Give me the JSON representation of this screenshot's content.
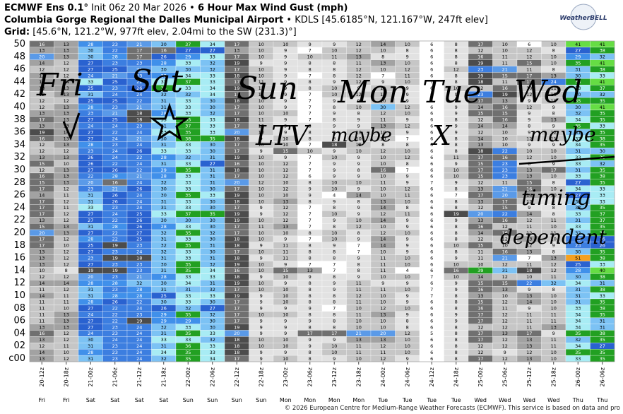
{
  "header": {
    "model": "ECMWF Ens 0.1°",
    "init": "Init 06z 20 Mar 2026",
    "product": "6 Hour Max Wind Gust (mph)",
    "station": "Columbia Gorge Regional the Dalles Municipal Airport",
    "station_info": "KDLS [45.6185°N, 121.167°W, 247ft elev]",
    "grid_label": "Grid:",
    "grid_info": "[45.6°N, 121.2°W, 977ft elev, 2.04mi to the SW (231.3)°]",
    "logo": "WeatherBELL"
  },
  "footer": "© 2026 European Centre for Medium-Range Weather Forecasts (ECMWF). This service is based on data and pro",
  "annotations": [
    "Fri",
    "Sat",
    "Sun",
    "Mon",
    "Tue",
    "Wed",
    "LTV",
    "maybe",
    "X",
    "maybe",
    "timing",
    "dependent"
  ],
  "chart_data": {
    "type": "heatmap",
    "x": [
      "20-12z",
      "20-18z",
      "21-00z",
      "21-06z",
      "21-12z",
      "21-18z",
      "22-00z",
      "22-06z",
      "22-12z",
      "22-18z",
      "23-00z",
      "23-06z",
      "23-12z",
      "23-18z",
      "24-00z",
      "24-06z",
      "24-12z",
      "24-18z",
      "25-00z",
      "25-06z",
      "25-12z",
      "25-18z",
      "26-00z",
      "26-06z"
    ],
    "days": [
      "Fri",
      "Fri",
      "Sat",
      "Sat",
      "Sat",
      "Sat",
      "Sun",
      "Sun",
      "Sun",
      "Sun",
      "Mon",
      "Mon",
      "Mon",
      "Mon",
      "Tue",
      "Tue",
      "Tue",
      "Tue",
      "Wed",
      "Wed",
      "Wed",
      "Wed",
      "Thu",
      "Thu"
    ],
    "members": [
      "50",
      null,
      "48",
      null,
      "46",
      null,
      "44",
      null,
      "42",
      null,
      "40",
      null,
      "38",
      null,
      "36",
      null,
      "34",
      null,
      "32",
      null,
      "30",
      null,
      "28",
      null,
      "26",
      null,
      "24",
      null,
      "22",
      null,
      "20",
      null,
      "18",
      null,
      "16",
      null,
      "14",
      null,
      "12",
      null,
      "10",
      null,
      "08",
      null,
      "06",
      null,
      "04",
      null,
      "02",
      null,
      "c00"
    ],
    "color_scale": [
      {
        "min": 0,
        "color": "#ffffff",
        "text": "#000000"
      },
      {
        "min": 8,
        "color": "#e2e2e2",
        "text": "#000000"
      },
      {
        "min": 10,
        "color": "#c6c6c6",
        "text": "#000000"
      },
      {
        "min": 13,
        "color": "#a2a2a2",
        "text": "#000000"
      },
      {
        "min": 15,
        "color": "#707070",
        "text": "#ffffff"
      },
      {
        "min": 18,
        "color": "#4c4c4c",
        "text": "#ffffff"
      },
      {
        "min": 20,
        "color": "#5a9ae8",
        "text": "#ffffff"
      },
      {
        "min": 22,
        "color": "#3c7ee0",
        "text": "#ffffff"
      },
      {
        "min": 25,
        "color": "#2a62d0",
        "text": "#ffffff"
      },
      {
        "min": 28,
        "color": "#4090ea",
        "text": "#ffffff"
      },
      {
        "min": 30,
        "color": "#7cc2f4",
        "text": "#000000"
      },
      {
        "min": 33,
        "color": "#a8ecf4",
        "text": "#000000"
      },
      {
        "min": 35,
        "color": "#22a022",
        "text": "#ffffff"
      },
      {
        "min": 40,
        "color": "#66dd44",
        "text": "#000000"
      },
      {
        "min": 50,
        "color": "#f4a020",
        "text": "#000000"
      }
    ],
    "values": [
      [
        16,
        13,
        28,
        23,
        21,
        30,
        37,
        34,
        17,
        10,
        10,
        9,
        9,
        12,
        14,
        10,
        6,
        8,
        17,
        10,
        6,
        10,
        41,
        41
      ],
      [
        13,
        13,
        30,
        22,
        17,
        16,
        27,
        27,
        13,
        10,
        9,
        7,
        10,
        12,
        10,
        8,
        6,
        8,
        12,
        10,
        12,
        8,
        27,
        38
      ],
      [
        20,
        13,
        30,
        28,
        17,
        26,
        29,
        33,
        17,
        10,
        9,
        10,
        11,
        13,
        8,
        9,
        6,
        8,
        16,
        11,
        12,
        10,
        29,
        32
      ],
      [
        14,
        12,
        27,
        23,
        23,
        28,
        33,
        32,
        19,
        9,
        9,
        8,
        8,
        11,
        13,
        10,
        6,
        8,
        19,
        11,
        15,
        10,
        35,
        41
      ],
      [
        12,
        12,
        27,
        25,
        21,
        30,
        30,
        32,
        17,
        10,
        9,
        8,
        8,
        12,
        10,
        12,
        6,
        12,
        23,
        21,
        11,
        8,
        31,
        38
      ],
      [
        13,
        12,
        24,
        21,
        23,
        28,
        34,
        33,
        18,
        10,
        9,
        7,
        8,
        12,
        7,
        11,
        6,
        8,
        19,
        15,
        17,
        13,
        30,
        33
      ],
      [
        13,
        14,
        33,
        25,
        22,
        33,
        37,
        33,
        17,
        11,
        9,
        8,
        9,
        12,
        9,
        10,
        7,
        8,
        18,
        11,
        17,
        24,
        38,
        41
      ],
      [
        13,
        13,
        25,
        23,
        26,
        35,
        33,
        34,
        19,
        12,
        9,
        8,
        10,
        9,
        12,
        9,
        6,
        10,
        12,
        16,
        10,
        11,
        33,
        37
      ],
      [
        12,
        13,
        31,
        24,
        24,
        32,
        32,
        34,
        17,
        11,
        9,
        7,
        10,
        12,
        12,
        9,
        6,
        9,
        23,
        19,
        12,
        10,
        30,
        32
      ],
      [
        12,
        12,
        25,
        25,
        22,
        31,
        33,
        30,
        18,
        10,
        9,
        7,
        9,
        9,
        10,
        9,
        6,
        8,
        17,
        13,
        9,
        10,
        35,
        35
      ],
      [
        12,
        13,
        28,
        23,
        21,
        31,
        33,
        30,
        17,
        10,
        9,
        7,
        8,
        10,
        30,
        12,
        6,
        9,
        14,
        16,
        12,
        9,
        30,
        41
      ],
      [
        13,
        13,
        23,
        21,
        18,
        28,
        33,
        32,
        17,
        10,
        10,
        7,
        9,
        8,
        12,
        10,
        6,
        9,
        15,
        15,
        9,
        8,
        32,
        35
      ],
      [
        17,
        13,
        27,
        25,
        18,
        33,
        35,
        33,
        18,
        11,
        9,
        7,
        8,
        9,
        11,
        9,
        6,
        8,
        12,
        16,
        9,
        13,
        34,
        35
      ],
      [
        13,
        13,
        24,
        24,
        23,
        31,
        37,
        33,
        17,
        10,
        9,
        8,
        9,
        9,
        13,
        12,
        6,
        9,
        14,
        14,
        8,
        9,
        35,
        33
      ],
      [
        19,
        14,
        27,
        22,
        24,
        33,
        35,
        33,
        20,
        10,
        9,
        8,
        9,
        10,
        10,
        9,
        6,
        9,
        12,
        10,
        9,
        12,
        31,
        35
      ],
      [
        16,
        13,
        27,
        24,
        21,
        30,
        38,
        35,
        18,
        9,
        10,
        8,
        8,
        10,
        10,
        7,
        6,
        8,
        14,
        10,
        12,
        11,
        33,
        38
      ],
      [
        12,
        13,
        28,
        23,
        24,
        31,
        33,
        30,
        17,
        10,
        10,
        7,
        18,
        12,
        8,
        8,
        6,
        8,
        13,
        10,
        9,
        9,
        34,
        35
      ],
      [
        12,
        12,
        23,
        24,
        26,
        33,
        33,
        30,
        17,
        9,
        15,
        10,
        9,
        10,
        12,
        10,
        6,
        8,
        18,
        22,
        10,
        10,
        31,
        30
      ],
      [
        13,
        13,
        26,
        24,
        22,
        28,
        32,
        31,
        19,
        10,
        9,
        7,
        10,
        9,
        10,
        12,
        6,
        11,
        17,
        16,
        12,
        10,
        33,
        35
      ],
      [
        15,
        10,
        26,
        22,
        24,
        31,
        33,
        27,
        16,
        10,
        12,
        7,
        9,
        9,
        10,
        8,
        6,
        9,
        15,
        23,
        8,
        9,
        33,
        32
      ],
      [
        12,
        13,
        27,
        26,
        22,
        29,
        35,
        31,
        18,
        10,
        12,
        7,
        9,
        8,
        16,
        7,
        6,
        10,
        17,
        23,
        13,
        17,
        31,
        35
      ],
      [
        16,
        13,
        22,
        28,
        21,
        28,
        33,
        31,
        17,
        10,
        12,
        6,
        9,
        9,
        10,
        9,
        6,
        10,
        15,
        23,
        13,
        10,
        33,
        38
      ],
      [
        15,
        13,
        20,
        16,
        24,
        32,
        33,
        31,
        20,
        12,
        10,
        8,
        10,
        10,
        11,
        9,
        7,
        9,
        12,
        11,
        15,
        8,
        27,
        35
      ],
      [
        17,
        12,
        23,
        21,
        26,
        30,
        33,
        30,
        17,
        10,
        12,
        9,
        10,
        9,
        10,
        12,
        6,
        8,
        13,
        21,
        16,
        10,
        34,
        33
      ],
      [
        14,
        11,
        31,
        26,
        24,
        30,
        35,
        33,
        19,
        10,
        10,
        9,
        4,
        14,
        10,
        11,
        6,
        7,
        17,
        20,
        14,
        10,
        27,
        33
      ],
      [
        17,
        12,
        31,
        26,
        24,
        31,
        33,
        30,
        18,
        10,
        13,
        8,
        9,
        8,
        13,
        10,
        6,
        8,
        13,
        17,
        12,
        8,
        30,
        33
      ],
      [
        17,
        11,
        33,
        23,
        24,
        31,
        33,
        30,
        17,
        9,
        12,
        7,
        8,
        9,
        14,
        8,
        6,
        8,
        12,
        15,
        9,
        8,
        32,
        35
      ],
      [
        17,
        12,
        27,
        24,
        25,
        33,
        37,
        35,
        19,
        9,
        12,
        7,
        10,
        9,
        12,
        11,
        6,
        19,
        20,
        22,
        14,
        8,
        33,
        37
      ],
      [
        13,
        12,
        27,
        22,
        26,
        30,
        30,
        30,
        19,
        10,
        12,
        7,
        9,
        10,
        14,
        9,
        6,
        9,
        13,
        16,
        12,
        11,
        31,
        37
      ],
      [
        15,
        13,
        31,
        28,
        26,
        28,
        33,
        30,
        17,
        11,
        13,
        7,
        8,
        12,
        10,
        9,
        6,
        8,
        16,
        12,
        11,
        10,
        33,
        35
      ],
      [
        20,
        13,
        27,
        22,
        27,
        32,
        35,
        32,
        17,
        10,
        10,
        8,
        10,
        8,
        12,
        10,
        6,
        8,
        14,
        16,
        12,
        11,
        32,
        35
      ],
      [
        17,
        12,
        28,
        22,
        25,
        31,
        33,
        30,
        18,
        10,
        9,
        7,
        10,
        9,
        14,
        9,
        6,
        8,
        12,
        12,
        13,
        10,
        23,
        26
      ],
      [
        17,
        10,
        25,
        19,
        23,
        32,
        35,
        31,
        18,
        9,
        11,
        8,
        9,
        7,
        14,
        9,
        6,
        10,
        15,
        10,
        12,
        9,
        23,
        26
      ],
      [
        13,
        12,
        27,
        23,
        24,
        32,
        33,
        30,
        17,
        10,
        11,
        8,
        8,
        7,
        10,
        9,
        6,
        8,
        11,
        16,
        13,
        8,
        30,
        35
      ],
      [
        13,
        12,
        23,
        19,
        18,
        31,
        33,
        31,
        18,
        9,
        11,
        8,
        8,
        9,
        11,
        10,
        6,
        9,
        11,
        21,
        7,
        13,
        51,
        38
      ],
      [
        13,
        12,
        27,
        23,
        23,
        30,
        35,
        32,
        19,
        10,
        9,
        7,
        7,
        8,
        11,
        10,
        6,
        10,
        10,
        12,
        11,
        12,
        25,
        33
      ],
      [
        10,
        8,
        19,
        19,
        23,
        31,
        35,
        34,
        16,
        10,
        15,
        13,
        7,
        8,
        11,
        4,
        6,
        16,
        39,
        31,
        18,
        12,
        28,
        40
      ],
      [
        12,
        12,
        20,
        23,
        21,
        28,
        33,
        33,
        18,
        9,
        10,
        9,
        8,
        9,
        10,
        10,
        7,
        10,
        14,
        12,
        10,
        11,
        30,
        38
      ],
      [
        14,
        14,
        28,
        28,
        32,
        30,
        34,
        31,
        19,
        10,
        9,
        8,
        9,
        11,
        9,
        9,
        6,
        9,
        15,
        15,
        22,
        32,
        34,
        31
      ],
      [
        11,
        12,
        31,
        23,
        28,
        31,
        31,
        32,
        17,
        10,
        10,
        8,
        9,
        11,
        11,
        10,
        7,
        9,
        16,
        13,
        9,
        8,
        31,
        38
      ],
      [
        14,
        11,
        31,
        28,
        28,
        25,
        33,
        33,
        19,
        9,
        10,
        8,
        8,
        12,
        10,
        9,
        7,
        8,
        13,
        10,
        13,
        10,
        31,
        33
      ],
      [
        11,
        11,
        28,
        26,
        22,
        30,
        33,
        30,
        17,
        9,
        10,
        8,
        8,
        11,
        10,
        9,
        6,
        8,
        15,
        12,
        14,
        10,
        31,
        35
      ],
      [
        11,
        10,
        27,
        22,
        24,
        26,
        32,
        27,
        17,
        9,
        9,
        9,
        7,
        10,
        12,
        10,
        6,
        8,
        16,
        11,
        9,
        10,
        33,
        38
      ],
      [
        11,
        13,
        24,
        22,
        23,
        29,
        35,
        32,
        17,
        10,
        10,
        8,
        8,
        11,
        13,
        9,
        6,
        9,
        17,
        12,
        11,
        11,
        34,
        35
      ],
      [
        11,
        13,
        27,
        22,
        19,
        29,
        29,
        30,
        17,
        9,
        9,
        9,
        8,
        10,
        10,
        8,
        6,
        9,
        17,
        12,
        11,
        11,
        34,
        31
      ],
      [
        13,
        13,
        27,
        23,
        24,
        32,
        33,
        30,
        19,
        9,
        9,
        8,
        8,
        10,
        10,
        8,
        6,
        8,
        12,
        12,
        11,
        13,
        34,
        31
      ],
      [
        16,
        12,
        24,
        23,
        24,
        31,
        35,
        33,
        20,
        9,
        9,
        17,
        17,
        21,
        20,
        12,
        5,
        8,
        17,
        13,
        17,
        9,
        35,
        38
      ],
      [
        13,
        12,
        30,
        24,
        24,
        33,
        33,
        32,
        18,
        10,
        10,
        9,
        9,
        13,
        13,
        10,
        6,
        8,
        17,
        12,
        13,
        11,
        32,
        35
      ],
      [
        12,
        11,
        31,
        23,
        24,
        31,
        36,
        33,
        18,
        10,
        10,
        9,
        10,
        11,
        12,
        10,
        6,
        8,
        12,
        12,
        13,
        11,
        34,
        27
      ],
      [
        14,
        10,
        28,
        23,
        24,
        34,
        35,
        33,
        18,
        9,
        9,
        8,
        10,
        11,
        11,
        10,
        6,
        8,
        12,
        9,
        12,
        10,
        35,
        35
      ],
      [
        13,
        12,
        31,
        23,
        24,
        32,
        35,
        34,
        17,
        9,
        10,
        8,
        9,
        10,
        12,
        9,
        6,
        8,
        17,
        12,
        13,
        10,
        33,
        35
      ]
    ]
  }
}
